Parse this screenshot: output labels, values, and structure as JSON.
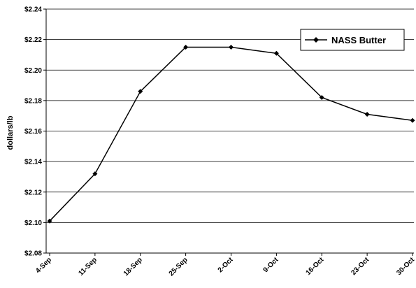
{
  "chart_data": {
    "type": "line",
    "title": "",
    "xlabel": "",
    "ylabel": "dollars/lb",
    "categories": [
      "4-Sep",
      "11-Sep",
      "18-Sep",
      "25-Sep",
      "2-Oct",
      "9-Oct",
      "16-Oct",
      "23-Oct",
      "30-Oct"
    ],
    "series": [
      {
        "name": "NASS Butter",
        "values": [
          2.101,
          2.132,
          2.186,
          2.215,
          2.215,
          2.211,
          2.182,
          2.171,
          2.167
        ]
      }
    ],
    "ylim": [
      2.08,
      2.24
    ],
    "yticks": [
      "$2.08",
      "$2.10",
      "$2.12",
      "$2.14",
      "$2.16",
      "$2.18",
      "$2.20",
      "$2.22",
      "$2.24"
    ],
    "grid": true,
    "legend": "top-right",
    "line_color": "#000000"
  }
}
